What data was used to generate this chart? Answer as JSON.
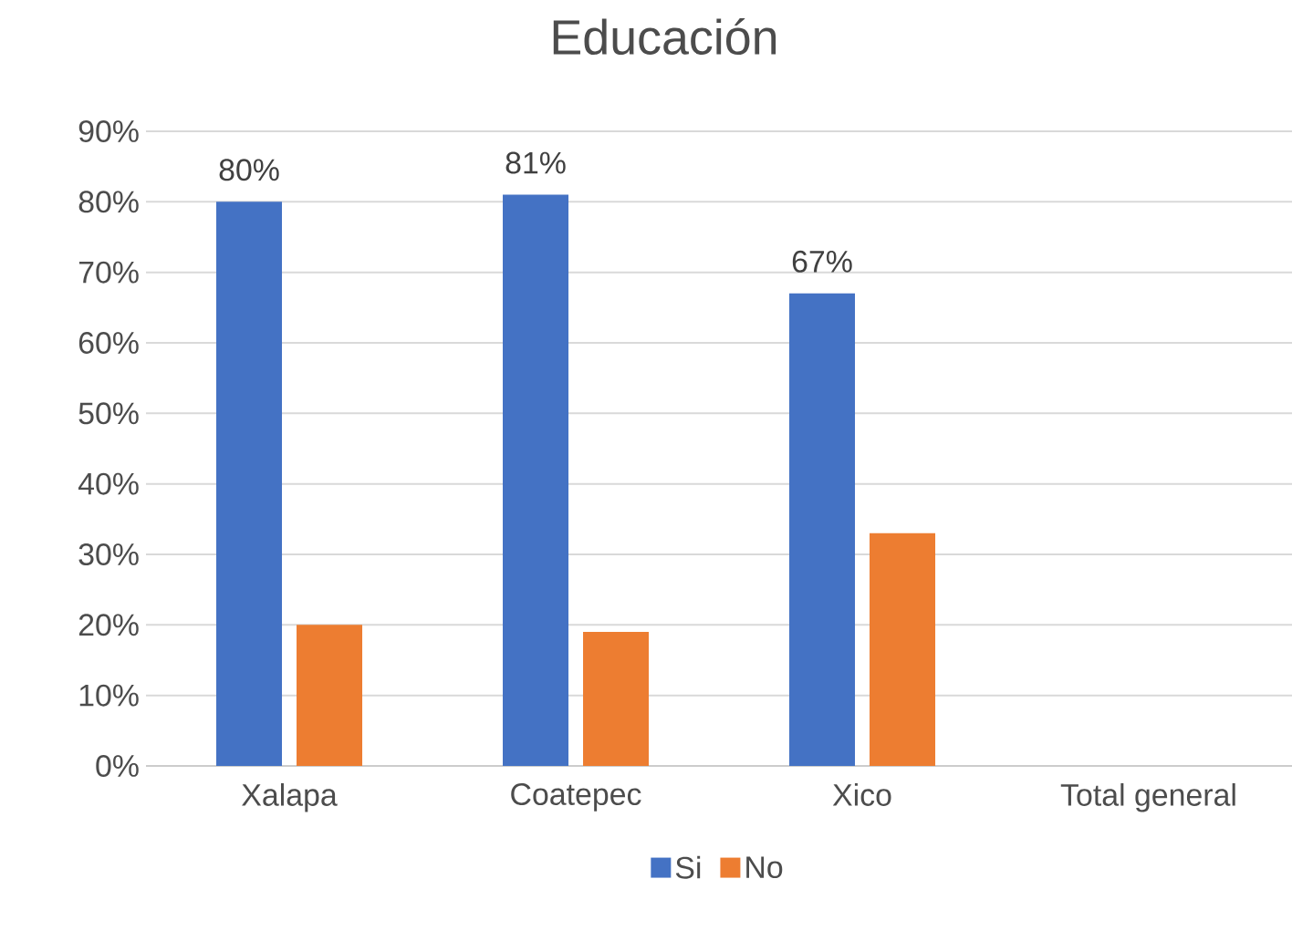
{
  "chart_data": {
    "type": "bar",
    "title": "Educación",
    "categories": [
      "Xalapa",
      "Coatepec",
      "Xico",
      "Total general"
    ],
    "series": [
      {
        "name": "Si",
        "color": "#4472c4",
        "values": [
          80,
          81,
          67,
          null
        ],
        "value_labels": [
          "80%",
          "81%",
          "67%",
          null
        ]
      },
      {
        "name": "No",
        "color": "#ed7d31",
        "values": [
          20,
          19,
          33,
          null
        ]
      }
    ],
    "ylim": [
      0,
      90
    ],
    "yticks": [
      {
        "value": 0,
        "label": "0%"
      },
      {
        "value": 10,
        "label": "10%"
      },
      {
        "value": 20,
        "label": "20%"
      },
      {
        "value": 30,
        "label": "30%"
      },
      {
        "value": 40,
        "label": "40%"
      },
      {
        "value": 50,
        "label": "50%"
      },
      {
        "value": 60,
        "label": "60%"
      },
      {
        "value": 70,
        "label": "70%"
      },
      {
        "value": 80,
        "label": "80%"
      },
      {
        "value": 90,
        "label": "90%"
      }
    ],
    "grid": "y",
    "legend": "bottom"
  }
}
